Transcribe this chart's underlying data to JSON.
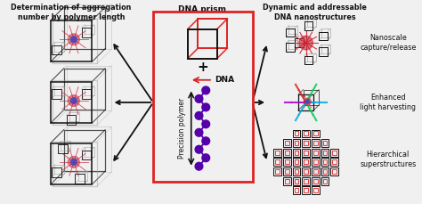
{
  "background_color": "#f0f0f0",
  "left_title": "Determination of aggregation\nnumber by polymer length",
  "center_top_label": "DNA prism",
  "center_plus": "+",
  "center_dna_label": "DNA",
  "center_axis_label": "Precision polymer",
  "right_title": "Dynamic and addressable\nDNA nanostructures",
  "right_labels": [
    "Nanoscale\ncapture/release",
    "Enhanced\nlight harvesting",
    "Hierarchical\nsuperstructures"
  ],
  "box_color": "#dd2222",
  "arrow_color": "#111111",
  "text_color": "#111111",
  "polymer_color": "#5500aa",
  "cube_color": "#111111",
  "red_accent": "#dd2222",
  "gray_color": "#999999",
  "blue_color": "#3344cc",
  "red_molecule": "#cc2233"
}
